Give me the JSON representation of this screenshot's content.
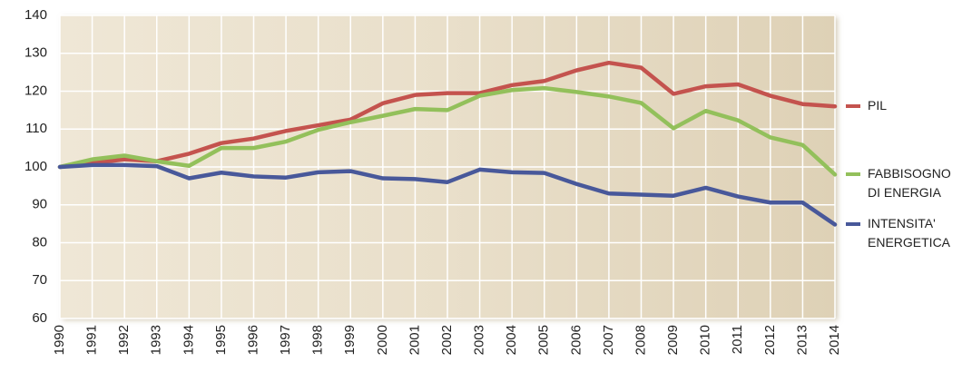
{
  "chart_data": {
    "type": "line",
    "x": [
      1990,
      1991,
      1992,
      1993,
      1994,
      1995,
      1996,
      1997,
      1998,
      1999,
      2000,
      2001,
      2002,
      2003,
      2004,
      2005,
      2006,
      2007,
      2008,
      2009,
      2010,
      2011,
      2012,
      2013,
      2014
    ],
    "xlim": [
      1990,
      2014
    ],
    "xticks": [
      1990,
      1991,
      1992,
      1993,
      1994,
      1995,
      1996,
      1997,
      1998,
      1999,
      2000,
      2001,
      2002,
      2003,
      2004,
      2005,
      2006,
      2007,
      2008,
      2009,
      2010,
      2011,
      2012,
      2013,
      2014
    ],
    "ylim": [
      60,
      140
    ],
    "yticks": [
      60,
      70,
      80,
      90,
      100,
      110,
      120,
      130,
      140
    ],
    "grid": true,
    "series": [
      {
        "name": "PIL",
        "color": "#c4534e",
        "values": [
          100,
          101,
          102,
          101.5,
          103.5,
          106.3,
          107.5,
          109.5,
          111,
          112.5,
          116.8,
          119,
          119.5,
          119.5,
          121.6,
          122.7,
          125.5,
          127.5,
          126.2,
          119.3,
          121.3,
          121.8,
          118.8,
          116.6,
          116
        ]
      },
      {
        "name": "FABBISOGNO DI ENERGIA",
        "color": "#93c05b",
        "values": [
          100,
          102,
          103,
          101.5,
          100.3,
          105,
          105,
          106.7,
          109.8,
          111.8,
          113.5,
          115.3,
          115,
          118.8,
          120.3,
          120.8,
          119.8,
          118.6,
          116.9,
          110.2,
          114.8,
          112.3,
          107.8,
          105.8,
          98
        ]
      },
      {
        "name": "INTENSITA' ENERGETICA",
        "color": "#48589a",
        "values": [
          100,
          100.5,
          100.5,
          100.2,
          97,
          98.5,
          97.5,
          97.2,
          98.6,
          98.9,
          97,
          96.8,
          96,
          99.3,
          98.6,
          98.4,
          95.5,
          93,
          92.7,
          92.4,
          94.5,
          92.2,
          90.6,
          90.6,
          84.8
        ]
      }
    ]
  }
}
